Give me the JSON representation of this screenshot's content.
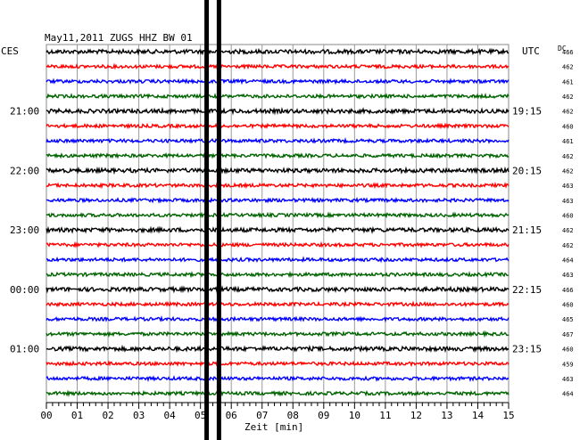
{
  "chart_data": {
    "type": "line",
    "title": "May11,2011   ZUGS HHZ BW 01",
    "left_label": "CES",
    "right_label": "UTC",
    "dc_label": "DC",
    "xlabel": "Zeit [min]",
    "x_ticks": [
      "00",
      "01",
      "02",
      "03",
      "04",
      "05",
      "06",
      "07",
      "08",
      "09",
      "10",
      "11",
      "12",
      "13",
      "14",
      "15"
    ],
    "xlim": [
      0,
      15
    ],
    "trace_colors": [
      "#000000",
      "#ff0000",
      "#0000ff",
      "#006400"
    ],
    "left_time_labels": [
      {
        "row": 4,
        "text": "21:00"
      },
      {
        "row": 8,
        "text": "22:00"
      },
      {
        "row": 12,
        "text": "23:00"
      },
      {
        "row": 16,
        "text": "00:00"
      },
      {
        "row": 20,
        "text": "01:00"
      }
    ],
    "right_time_labels": [
      {
        "row": 4,
        "text": "19:15"
      },
      {
        "row": 8,
        "text": "20:15"
      },
      {
        "row": 12,
        "text": "21:15"
      },
      {
        "row": 16,
        "text": "22:15"
      },
      {
        "row": 20,
        "text": "23:15"
      }
    ],
    "dc_values": [
      "466",
      "462",
      "461",
      "462",
      "462",
      "460",
      "461",
      "462",
      "462",
      "463",
      "463",
      "460",
      "462",
      "462",
      "464",
      "463",
      "466",
      "460",
      "465",
      "467",
      "460",
      "459",
      "463",
      "464"
    ],
    "event_markers_min": [
      5.2,
      5.6
    ],
    "grid": true
  }
}
